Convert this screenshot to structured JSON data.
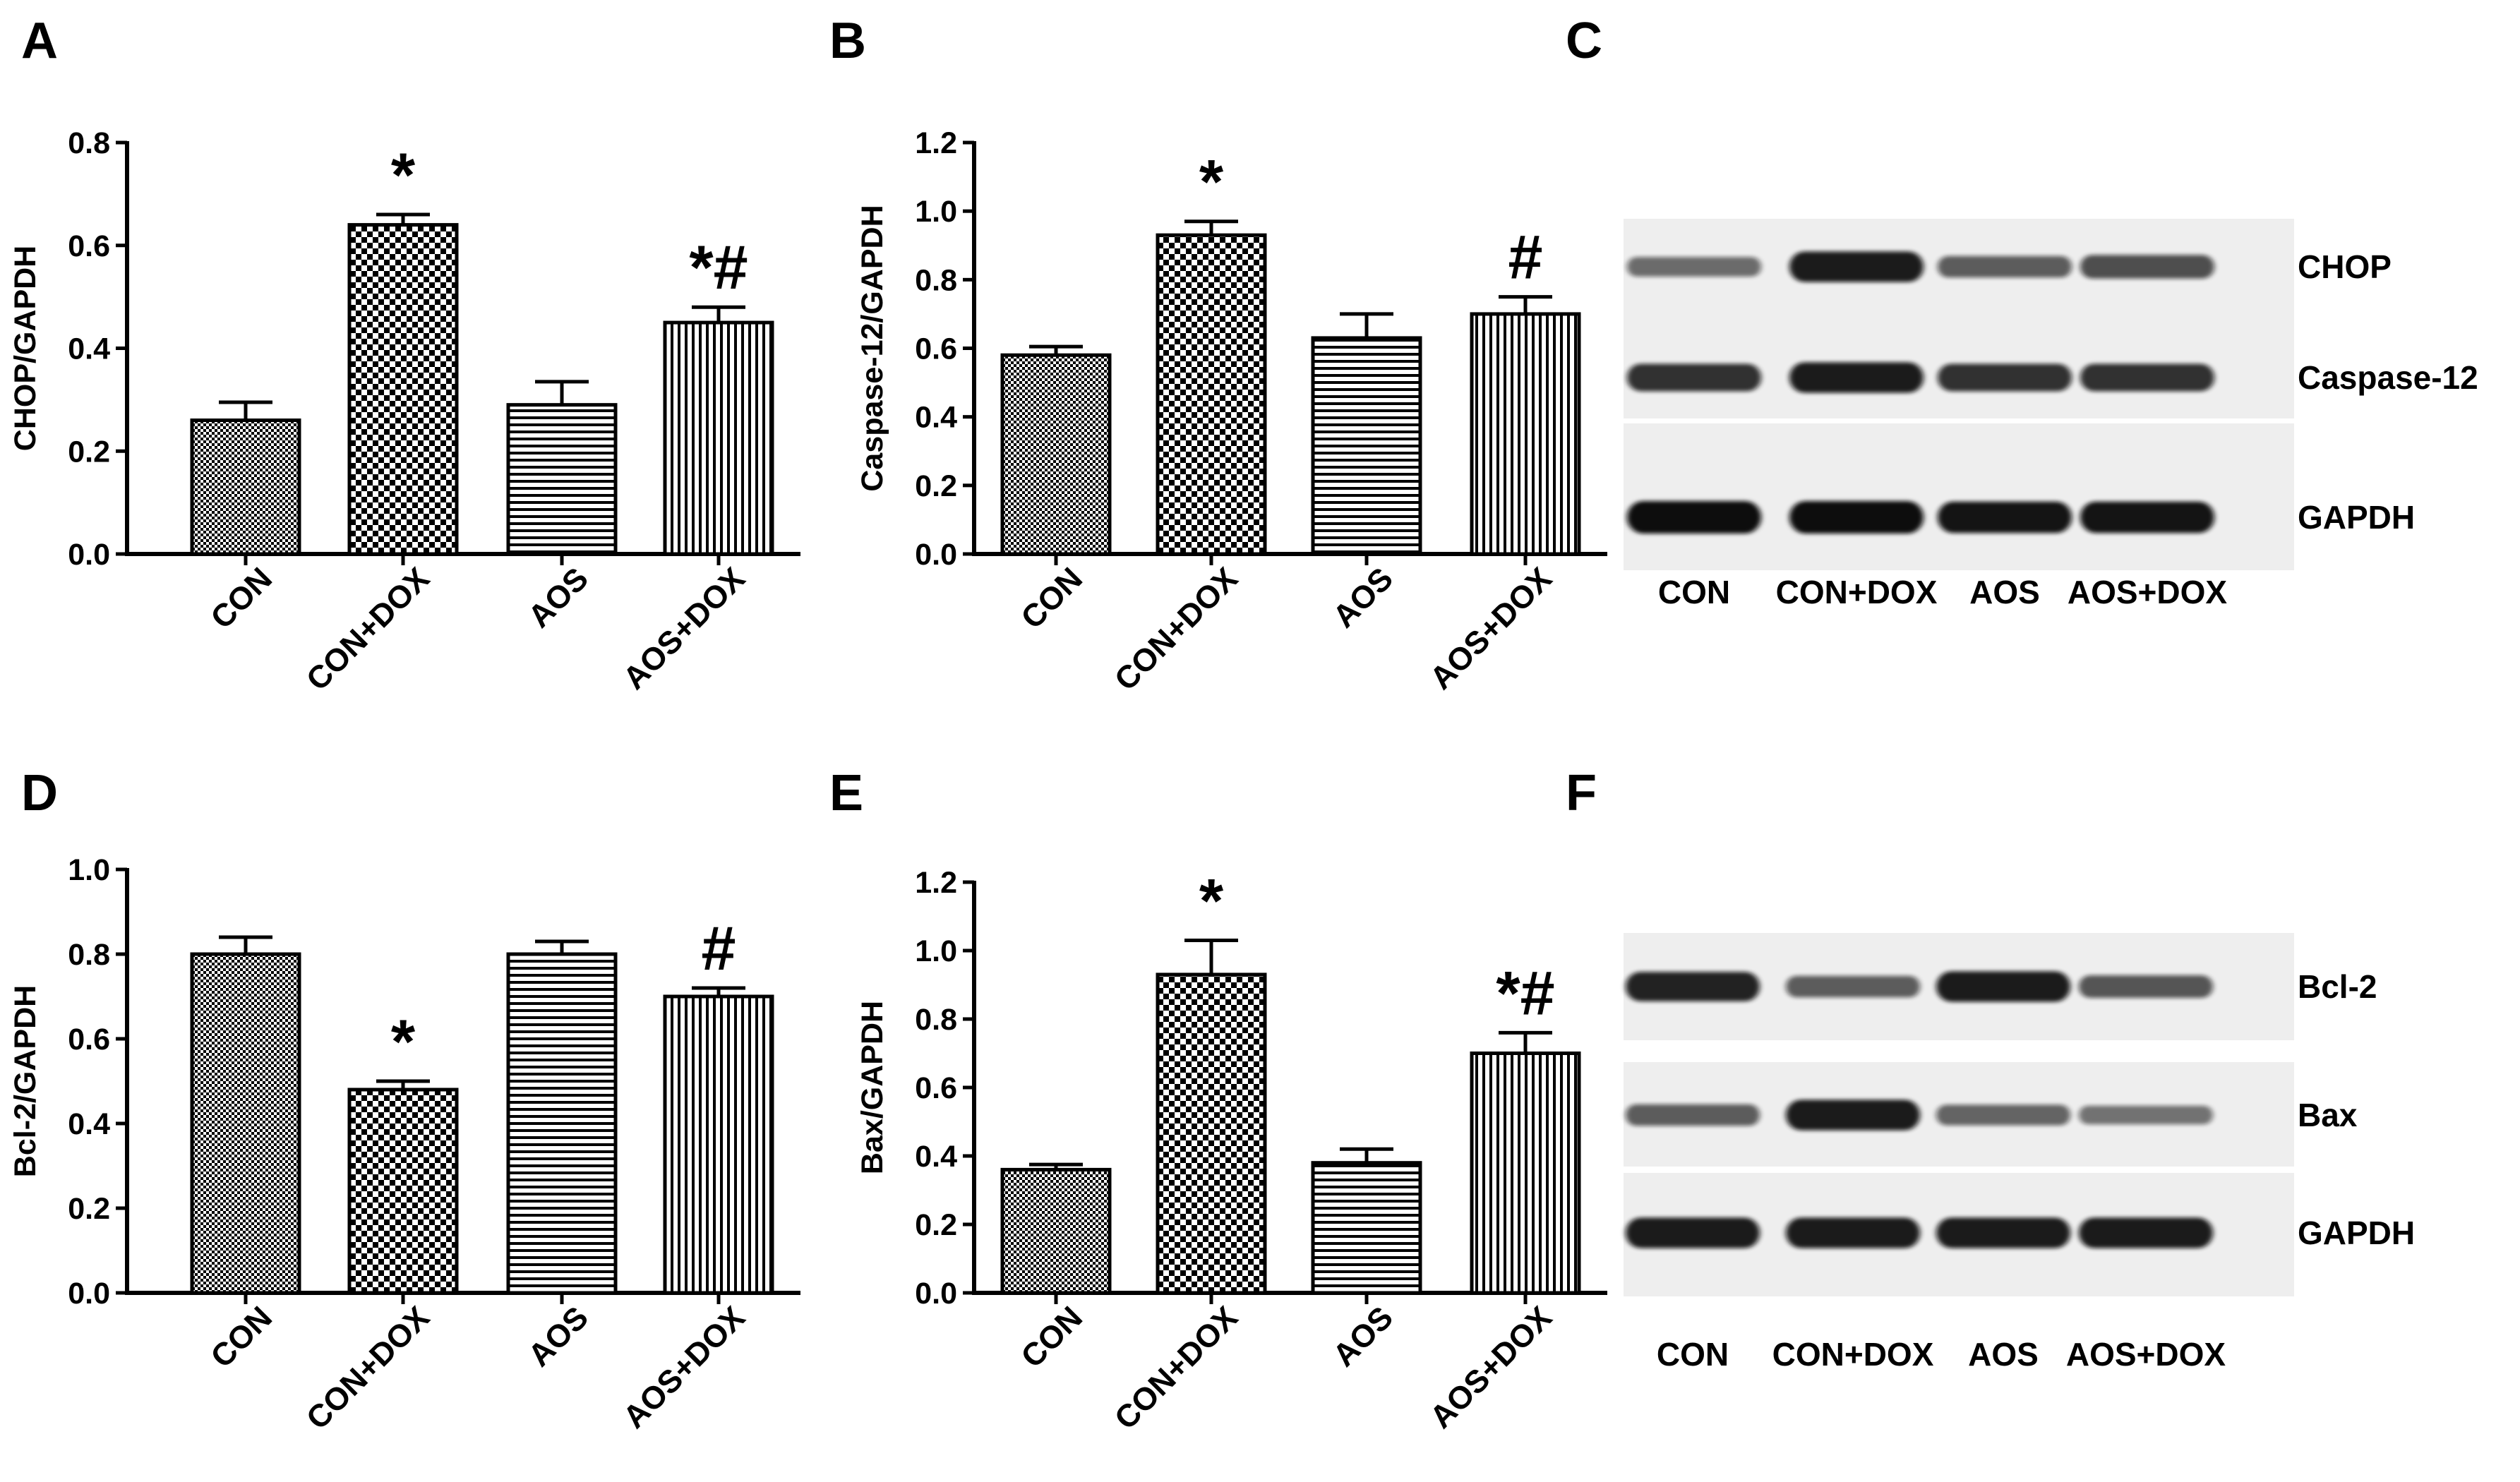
{
  "panels": {
    "A": "A",
    "B": "B",
    "C": "C",
    "D": "D",
    "E": "E",
    "F": "F"
  },
  "colors": {
    "ink": "#000000",
    "background": "#ffffff",
    "blot_bg": "#eeeeee",
    "band": "#111111"
  },
  "chart_data": [
    {
      "id": "A",
      "type": "bar",
      "ylabel": "CHOP/GAPDH",
      "categories": [
        "CON",
        "CON+DOX",
        "AOS",
        "AOS+DOX"
      ],
      "values": [
        0.26,
        0.64,
        0.29,
        0.45
      ],
      "errors": [
        0.035,
        0.02,
        0.045,
        0.03
      ],
      "annotations": [
        "",
        "*",
        "",
        "*#"
      ],
      "patterns": [
        "grid-fine",
        "checker",
        "horizontal",
        "vertical"
      ],
      "ylim": [
        0,
        0.8
      ],
      "yticks": [
        0.0,
        0.2,
        0.4,
        0.6,
        0.8
      ],
      "ytick_labels": [
        "0.0",
        "0.2",
        "0.4",
        "0.6",
        "0.8"
      ]
    },
    {
      "id": "B",
      "type": "bar",
      "ylabel": "Caspase-12/GAPDH",
      "categories": [
        "CON",
        "CON+DOX",
        "AOS",
        "AOS+DOX"
      ],
      "values": [
        0.58,
        0.93,
        0.63,
        0.7
      ],
      "errors": [
        0.025,
        0.04,
        0.07,
        0.05
      ],
      "annotations": [
        "",
        "*",
        "",
        "#"
      ],
      "patterns": [
        "grid-fine",
        "checker",
        "horizontal",
        "vertical"
      ],
      "ylim": [
        0,
        1.2
      ],
      "yticks": [
        0.0,
        0.2,
        0.4,
        0.6,
        0.8,
        1.0,
        1.2
      ],
      "ytick_labels": [
        "0.0",
        "0.2",
        "0.4",
        "0.6",
        "0.8",
        "1.0",
        "1.2"
      ]
    },
    {
      "id": "D",
      "type": "bar",
      "ylabel": "Bcl-2/GAPDH",
      "categories": [
        "CON",
        "CON+DOX",
        "AOS",
        "AOS+DOX"
      ],
      "values": [
        0.8,
        0.48,
        0.8,
        0.7
      ],
      "errors": [
        0.04,
        0.02,
        0.03,
        0.02
      ],
      "annotations": [
        "",
        "*",
        "",
        "#"
      ],
      "patterns": [
        "grid-fine",
        "checker",
        "horizontal",
        "vertical"
      ],
      "ylim": [
        0,
        1.0
      ],
      "yticks": [
        0.0,
        0.2,
        0.4,
        0.6,
        0.8,
        1.0
      ],
      "ytick_labels": [
        "0.0",
        "0.2",
        "0.4",
        "0.6",
        "0.8",
        "1.0"
      ]
    },
    {
      "id": "E",
      "type": "bar",
      "ylabel": "Bax/GAPDH",
      "categories": [
        "CON",
        "CON+DOX",
        "AOS",
        "AOS+DOX"
      ],
      "values": [
        0.36,
        0.93,
        0.38,
        0.7
      ],
      "errors": [
        0.015,
        0.1,
        0.04,
        0.06
      ],
      "annotations": [
        "",
        "*",
        "",
        "*#"
      ],
      "patterns": [
        "grid-fine",
        "checker",
        "horizontal",
        "vertical"
      ],
      "ylim": [
        0,
        1.2
      ],
      "yticks": [
        0.0,
        0.2,
        0.4,
        0.6,
        0.8,
        1.0,
        1.2
      ],
      "ytick_labels": [
        "0.0",
        "0.2",
        "0.4",
        "0.6",
        "0.8",
        "1.0",
        "1.2"
      ]
    }
  ],
  "blots": [
    {
      "id": "C",
      "rows": [
        {
          "label": "CHOP",
          "bands": [
            0.35,
            0.9,
            0.45,
            0.55
          ]
        },
        {
          "label": "Caspase-12",
          "bands": [
            0.75,
            0.9,
            0.75,
            0.75
          ]
        },
        {
          "label": "GAPDH",
          "bands": [
            1.0,
            1.0,
            0.95,
            0.95
          ]
        }
      ],
      "lanes": [
        "CON",
        "CON+DOX",
        "AOS",
        "AOS+DOX"
      ]
    },
    {
      "id": "F",
      "rows": [
        {
          "label": "Bcl-2",
          "bands": [
            0.85,
            0.45,
            0.9,
            0.5
          ]
        },
        {
          "label": "Bax",
          "bands": [
            0.45,
            0.9,
            0.4,
            0.3
          ]
        },
        {
          "label": "GAPDH",
          "bands": [
            0.9,
            0.9,
            0.9,
            0.9
          ]
        }
      ],
      "lanes": [
        "CON",
        "CON+DOX",
        "AOS",
        "AOS+DOX"
      ]
    }
  ]
}
